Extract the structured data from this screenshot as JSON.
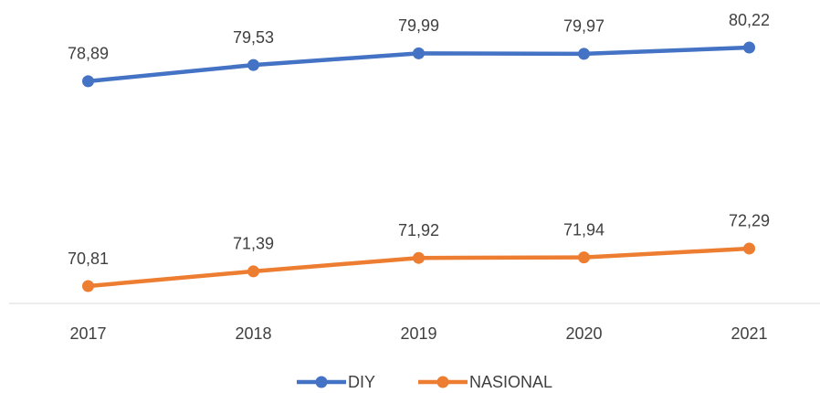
{
  "chart_data": {
    "type": "line",
    "categories": [
      "2017",
      "2018",
      "2019",
      "2020",
      "2021"
    ],
    "series": [
      {
        "name": "DIY",
        "color": "#4472c4",
        "values": [
          78.89,
          79.53,
          79.99,
          79.97,
          80.22
        ],
        "value_labels": [
          "78,89",
          "79,53",
          "79,99",
          "79,97",
          "80,22"
        ]
      },
      {
        "name": "NASIONAL",
        "color": "#ed7d31",
        "values": [
          70.81,
          71.39,
          71.92,
          71.94,
          72.29
        ],
        "value_labels": [
          "70,81",
          "71,39",
          "71,92",
          "71,94",
          "72,29"
        ]
      }
    ],
    "legend": "bottom"
  }
}
